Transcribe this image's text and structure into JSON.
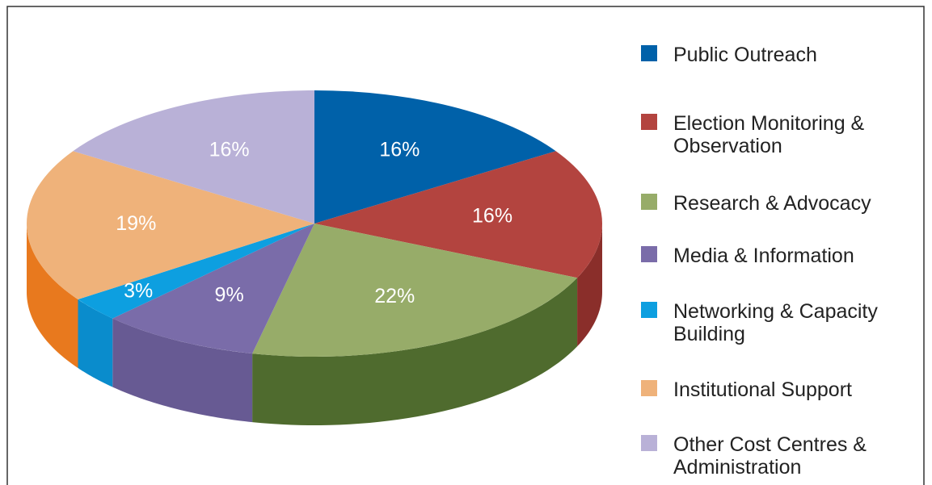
{
  "chart_data": {
    "type": "pie",
    "categories": [
      "Public Outreach",
      "Election Monitoring & Observation",
      "Research & Advocacy",
      "Media & Information",
      "Networking & Capacity Building",
      "Institutional Support",
      "Other Cost Centres & Administration"
    ],
    "values": [
      16,
      16,
      22,
      9,
      3,
      19,
      16
    ],
    "value_labels": [
      "16%",
      "16%",
      "22%",
      "9%",
      "3%",
      "19%",
      "16%"
    ],
    "colors": [
      "#0061a9",
      "#b3443f",
      "#97ac69",
      "#7a6ca9",
      "#0d9fe0",
      "#efb27a",
      "#b9b1d7"
    ],
    "side_colors": [
      "#004a85",
      "#8a2e2a",
      "#4f6b2e",
      "#675a93",
      "#0a8ccc",
      "#e8791e",
      "#9f97c0"
    ],
    "legend": "right"
  }
}
